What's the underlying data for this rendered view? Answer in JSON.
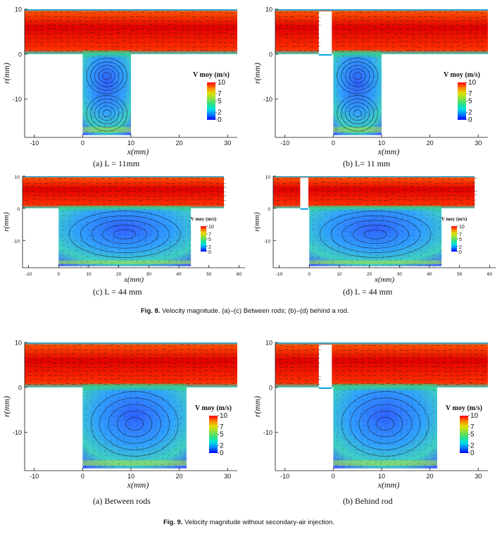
{
  "fig8": {
    "caption_label": "Fig. 8.",
    "caption_text": " Velocity magnitude. (a)–(c) Between rods; (b)–(d) behind a rod.",
    "panels": [
      {
        "id": "a",
        "caption": "(a)  L = 11mm",
        "rod": false,
        "L": 11,
        "xmax": 32,
        "xticks": [
          "-10",
          "0",
          "10",
          "20",
          "30"
        ]
      },
      {
        "id": "b",
        "caption": "(b)  L= 11 mm",
        "rod": true,
        "L": 11,
        "xmax": 32,
        "xticks": [
          "-10",
          "0",
          "10",
          "20",
          "30"
        ]
      },
      {
        "id": "c",
        "caption": "(c)  L = 44 mm",
        "rod": false,
        "L": 44,
        "xmax": 62,
        "xticks": [
          "-10",
          "0",
          "10",
          "20",
          "30",
          "40",
          "50",
          "60"
        ]
      },
      {
        "id": "d",
        "caption": "(d)  L = 44 mm",
        "rod": true,
        "L": 44,
        "xmax": 62,
        "xticks": [
          "-10",
          "0",
          "10",
          "20",
          "30",
          "40",
          "50",
          "60"
        ]
      }
    ]
  },
  "fig9": {
    "caption_label": "Fig. 9.",
    "caption_text": " Velocity magnitude without secondary-air injection.",
    "panels": [
      {
        "id": "e",
        "caption": "(a)  Between rods",
        "rod": false,
        "L": 22,
        "xmax": 32,
        "xticks": [
          "-10",
          "0",
          "10",
          "20",
          "30"
        ]
      },
      {
        "id": "f",
        "caption": "(b)  Behind rod",
        "rod": true,
        "L": 22,
        "xmax": 32,
        "xticks": [
          "-10",
          "0",
          "10",
          "20",
          "30"
        ]
      }
    ]
  },
  "axes": {
    "xlabel": "x(mm)",
    "ylabel": "r(mm)",
    "yticks": [
      "10",
      "0",
      "-10"
    ]
  },
  "colorbar": {
    "title": "V moy (m/s)",
    "ticks": [
      "10",
      "7",
      "5",
      "2",
      "0"
    ]
  },
  "colors": {
    "jet": [
      "#0000ff",
      "#0080ff",
      "#00e0e0",
      "#30e080",
      "#90e040",
      "#e0e000",
      "#ff8000",
      "#ff0000"
    ]
  }
}
